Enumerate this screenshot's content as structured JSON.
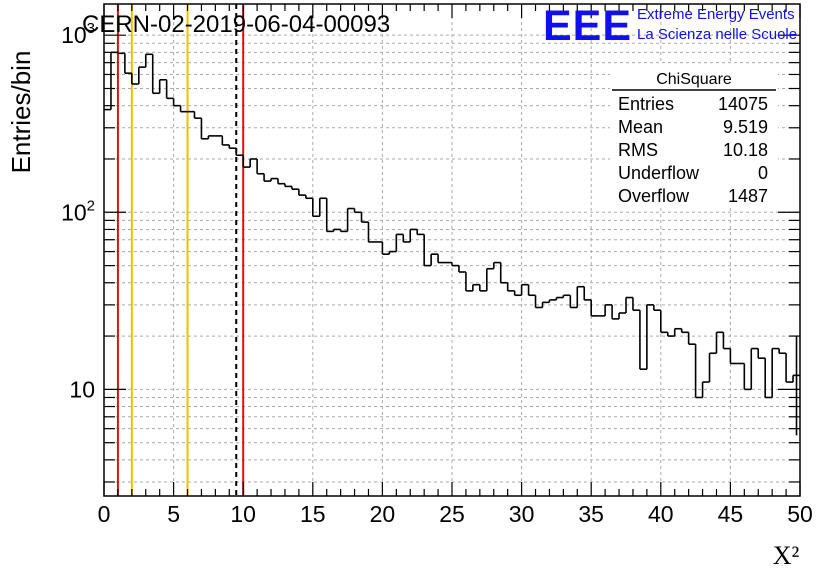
{
  "title": "CERN-02-2019-06-04-00093",
  "logo": {
    "mark": "EEE",
    "line1": "Extreme Energy Events",
    "line2": "La Scienza nelle Scuole",
    "color": "#1010ee"
  },
  "stats_box": {
    "name": "ChiSquare",
    "rows": [
      {
        "label": "Entries",
        "value": "14075"
      },
      {
        "label": "Mean",
        "value": "9.519"
      },
      {
        "label": "RMS",
        "value": "10.18"
      },
      {
        "label": "Underflow",
        "value": "0"
      },
      {
        "label": "Overflow",
        "value": "1487"
      }
    ]
  },
  "chart_data": {
    "type": "histogram",
    "title": "CERN-02-2019-06-04-00093",
    "xlabel": "X²",
    "ylabel": "Entries/bin",
    "xlim": [
      0,
      50
    ],
    "ylim": [
      2.5,
      1500
    ],
    "yscale": "log",
    "grid": true,
    "bin_width": 0.5,
    "x_ticks": [
      "0",
      "5",
      "10",
      "15",
      "20",
      "25",
      "30",
      "35",
      "40",
      "45",
      "50"
    ],
    "y_tick_labels": [
      {
        "value": 10,
        "base": "10",
        "exp": ""
      },
      {
        "value": 100,
        "base": "10",
        "exp": "2"
      },
      {
        "value": 1000,
        "base": "10",
        "exp": "3"
      }
    ],
    "values": [
      380,
      800,
      790,
      610,
      530,
      660,
      780,
      470,
      560,
      440,
      400,
      370,
      370,
      340,
      260,
      270,
      270,
      240,
      230,
      210,
      180,
      200,
      165,
      150,
      155,
      145,
      140,
      135,
      125,
      120,
      95,
      120,
      78,
      80,
      78,
      105,
      100,
      88,
      68,
      68,
      58,
      60,
      75,
      68,
      80,
      75,
      50,
      58,
      52,
      52,
      50,
      46,
      36,
      39,
      36,
      48,
      52,
      40,
      36,
      34,
      39,
      34,
      29,
      31,
      32,
      33,
      34,
      29,
      38,
      32,
      26,
      26,
      30,
      25,
      27,
      33,
      28,
      13,
      30,
      28,
      21,
      20,
      22,
      21,
      18,
      9,
      11,
      16,
      21,
      17,
      14,
      14,
      10,
      17,
      15,
      9,
      17,
      16,
      11,
      12
    ],
    "reference_lines": [
      {
        "x": 1,
        "color": "#e01010",
        "style": "solid"
      },
      {
        "x": 2,
        "color": "#f0c000",
        "style": "solid"
      },
      {
        "x": 6,
        "color": "#f0c000",
        "style": "solid"
      },
      {
        "x": 9.5,
        "color": "#000000",
        "style": "dashed"
      },
      {
        "x": 10,
        "color": "#e01010",
        "style": "solid"
      }
    ],
    "last_bin_error": [
      5.5,
      20
    ]
  }
}
